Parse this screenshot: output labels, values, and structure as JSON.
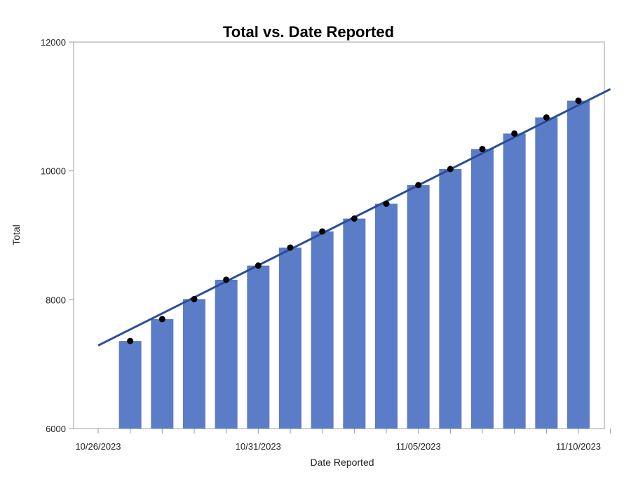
{
  "chart_data": {
    "type": "bar",
    "title": "Total vs. Date Reported",
    "xlabel": "Date Reported",
    "ylabel": "Total",
    "ylim": [
      6000,
      12000
    ],
    "xlim": [
      "10/26/2023",
      "11/11/2023"
    ],
    "x_tick_labels": [
      "10/26/2023",
      "10/31/2023",
      "11/05/2023",
      "11/10/2023"
    ],
    "y_tick_labels": [
      "6000",
      "8000",
      "10000",
      "12000"
    ],
    "dates": [
      "10/27/2023",
      "10/28/2023",
      "10/29/2023",
      "10/30/2023",
      "10/31/2023",
      "11/01/2023",
      "11/02/2023",
      "11/03/2023",
      "11/04/2023",
      "11/05/2023",
      "11/06/2023",
      "11/07/2023",
      "11/08/2023",
      "11/09/2023",
      "11/10/2023"
    ],
    "values": [
      7360,
      7700,
      8010,
      8310,
      8530,
      8810,
      9060,
      9260,
      9490,
      9780,
      10030,
      10340,
      10580,
      10830,
      11090
    ],
    "trend_line": {
      "start": {
        "x": "10/26/2023",
        "y": 7290
      },
      "end": {
        "x": "11/11/2023",
        "y": 11270
      }
    },
    "colors": {
      "bar": "#5b7cc6",
      "trend": "#2c4c96",
      "point": "#000000",
      "frame": "#bfbfbf"
    },
    "grid": false,
    "legend": "none"
  }
}
